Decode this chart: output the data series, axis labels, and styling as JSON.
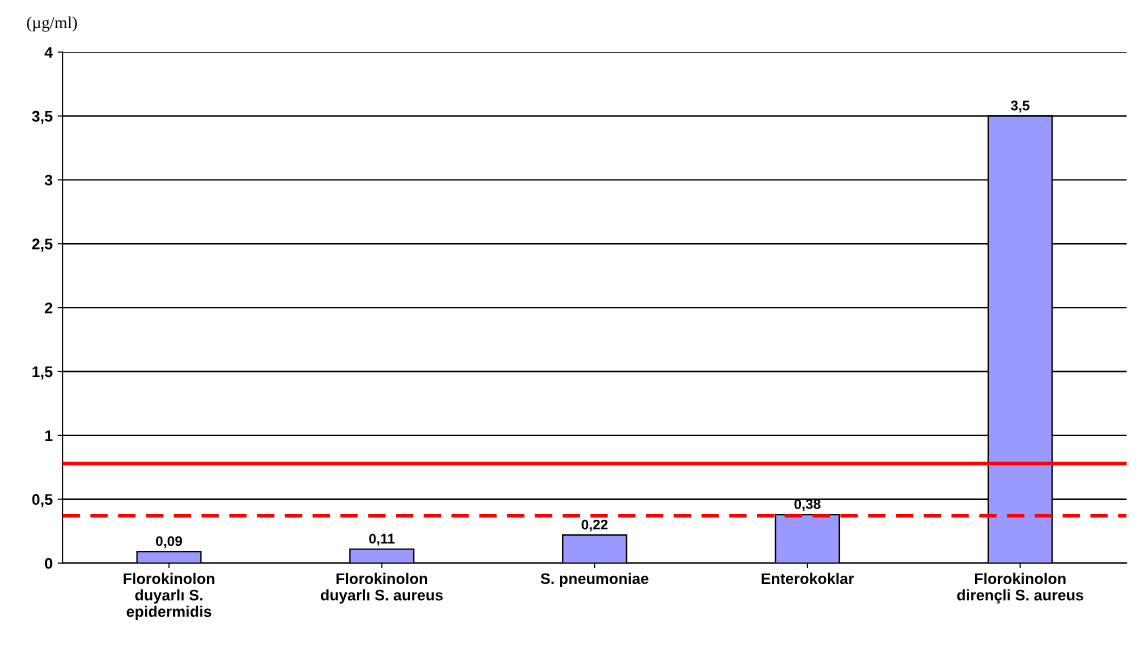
{
  "chart_data": {
    "type": "bar",
    "ylabel": "(µg/ml)",
    "categories": [
      "Florokinolon\nduyarlı S.\nepidermidis",
      "Florokinolon\nduyarlı S. aureus",
      "S. pneumoniae",
      "Enterokoklar",
      "Florokinolon\ndirençli S. aureus"
    ],
    "values": [
      0.09,
      0.11,
      0.22,
      0.38,
      3.5
    ],
    "value_labels": [
      "0,09",
      "0,11",
      "0,22",
      "0,38",
      "3,5"
    ],
    "color": "#9999ff",
    "ylim": [
      0,
      4
    ],
    "yticks": [
      0,
      {
        "value": 0.5,
        "label": "0,5"
      },
      1,
      {
        "value": 1.5,
        "label": "1,5"
      },
      2,
      {
        "value": 2.5,
        "label": "2,5"
      },
      3,
      {
        "value": 3.5,
        "label": "3,5"
      },
      4
    ],
    "grid": "y",
    "ref_lines": [
      {
        "axis": "y",
        "value": 0.78,
        "color": "#ff0000",
        "line_style": "solid"
      },
      {
        "axis": "y",
        "value": 0.37,
        "color": "#ff0000",
        "line_style": "dashed"
      }
    ]
  }
}
